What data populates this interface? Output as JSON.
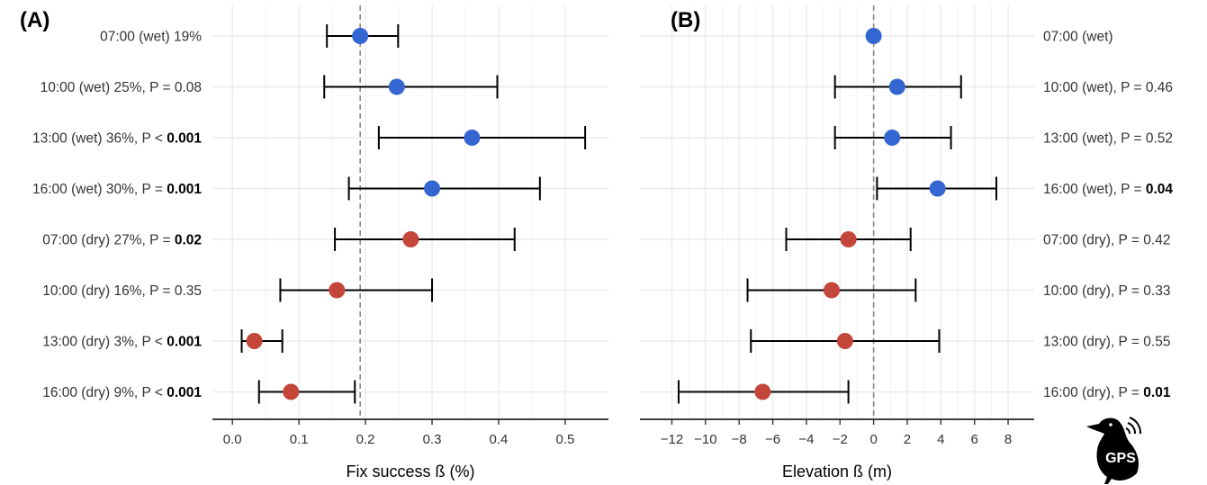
{
  "chart_data": [
    {
      "type": "dot-errorbar",
      "panel_label": "(A)",
      "xlabel": "Fix success ß (%)",
      "xlim": [
        -0.03,
        0.565
      ],
      "x_ticks": [
        0.0,
        0.1,
        0.2,
        0.3,
        0.4,
        0.5
      ],
      "tick_labels": [
        "0.0",
        "0.1",
        "0.2",
        "0.3",
        "0.4",
        "0.5"
      ],
      "reference_line": 0.192,
      "labels_side": "left",
      "rows": [
        {
          "label": "07:00 (wet)  19%",
          "p_prefix": "",
          "p_value": "",
          "p_bold": false,
          "condition": "wet",
          "estimate": 0.192,
          "lower": 0.142,
          "upper": 0.249
        },
        {
          "label": "10:00 (wet)  25%, P = 0.08",
          "p_prefix": "",
          "p_value": "",
          "p_bold": false,
          "condition": "wet",
          "estimate": 0.247,
          "lower": 0.138,
          "upper": 0.398
        },
        {
          "label": "13:00 (wet)  36%, P < ",
          "p_prefix": "",
          "p_value": "0.001",
          "p_bold": true,
          "condition": "wet",
          "estimate": 0.36,
          "lower": 0.22,
          "upper": 0.53
        },
        {
          "label": "16:00 (wet)  30%, P = ",
          "p_prefix": "",
          "p_value": "0.001",
          "p_bold": true,
          "condition": "wet",
          "estimate": 0.3,
          "lower": 0.175,
          "upper": 0.462
        },
        {
          "label": "07:00 (dry)  27%, P = ",
          "p_prefix": "",
          "p_value": "0.02",
          "p_bold": true,
          "condition": "dry",
          "estimate": 0.268,
          "lower": 0.154,
          "upper": 0.424
        },
        {
          "label": "10:00 (dry)  16%, P = 0.35",
          "p_prefix": "",
          "p_value": "",
          "p_bold": false,
          "condition": "dry",
          "estimate": 0.157,
          "lower": 0.072,
          "upper": 0.3
        },
        {
          "label": "13:00 (dry)  3%, P < ",
          "p_prefix": "",
          "p_value": "0.001",
          "p_bold": true,
          "condition": "dry",
          "estimate": 0.033,
          "lower": 0.014,
          "upper": 0.075
        },
        {
          "label": "16:00 (dry)  9%, P < ",
          "p_prefix": "",
          "p_value": "0.001",
          "p_bold": true,
          "condition": "dry",
          "estimate": 0.088,
          "lower": 0.04,
          "upper": 0.184
        }
      ]
    },
    {
      "type": "dot-errorbar",
      "panel_label": "(B)",
      "xlabel": "Elevation ß (m)",
      "xlim": [
        -13.9,
        9.55
      ],
      "x_ticks": [
        -12,
        -10,
        -8,
        -6,
        -4,
        -2,
        0,
        2,
        4,
        6,
        8
      ],
      "tick_labels": [
        "−12",
        "−10",
        "−8",
        "−6",
        "−4",
        "−2",
        "0",
        "2",
        "4",
        "6",
        "8"
      ],
      "reference_line": 0,
      "labels_side": "right",
      "rows": [
        {
          "label": "07:00 (wet)",
          "p_value": "",
          "p_bold": false,
          "condition": "wet",
          "estimate": 0.0,
          "lower": null,
          "upper": null
        },
        {
          "label": "10:00 (wet), P = 0.46",
          "p_value": "",
          "p_bold": false,
          "condition": "wet",
          "estimate": 1.4,
          "lower": -2.3,
          "upper": 5.2
        },
        {
          "label": "13:00 (wet), P = 0.52",
          "p_value": "",
          "p_bold": false,
          "condition": "wet",
          "estimate": 1.1,
          "lower": -2.3,
          "upper": 4.6
        },
        {
          "label": "16:00 (wet), P = ",
          "p_value": "0.04",
          "p_bold": true,
          "condition": "wet",
          "estimate": 3.8,
          "lower": 0.2,
          "upper": 7.3
        },
        {
          "label": "07:00 (dry), P = 0.42",
          "p_value": "",
          "p_bold": false,
          "condition": "dry",
          "estimate": -1.5,
          "lower": -5.2,
          "upper": 2.2
        },
        {
          "label": "10:00 (dry), P = 0.33",
          "p_value": "",
          "p_bold": false,
          "condition": "dry",
          "estimate": -2.5,
          "lower": -7.5,
          "upper": 2.5
        },
        {
          "label": "13:00 (dry), P = 0.55",
          "p_value": "",
          "p_bold": false,
          "condition": "dry",
          "estimate": -1.7,
          "lower": -7.3,
          "upper": 3.9
        },
        {
          "label": "16:00 (dry), P = ",
          "p_value": "0.01",
          "p_bold": true,
          "condition": "dry",
          "estimate": -6.6,
          "lower": -11.6,
          "upper": -1.5
        }
      ]
    }
  ],
  "colors": {
    "wet": "#3366d1",
    "dry": "#c4453a",
    "grid": "#ebebeb",
    "reference": "#888888"
  },
  "logo": {
    "text": "GPS",
    "icon": "bird-gps-icon"
  }
}
